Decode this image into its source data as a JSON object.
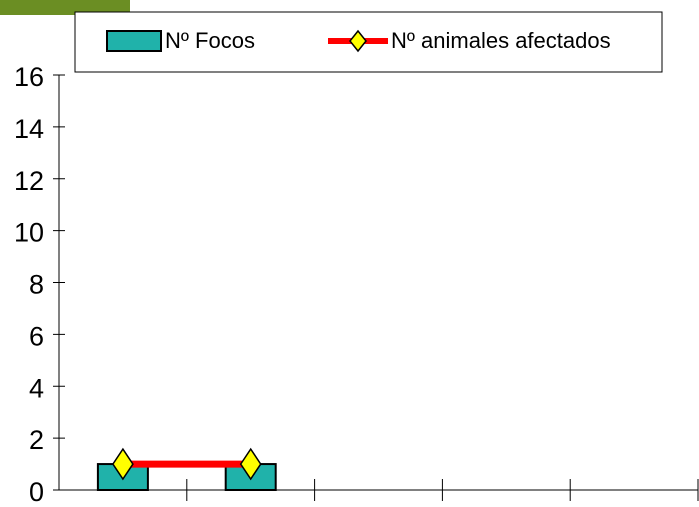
{
  "colors": {
    "corner_tab": "#6b8e23",
    "bar_fill": "#20b2aa",
    "bar_stroke": "#000000",
    "line": "#ff0000",
    "marker_fill": "#ffff00",
    "marker_stroke": "#000000",
    "axis": "#000000"
  },
  "chart_data": {
    "type": "bar",
    "title": "",
    "xlabel": "",
    "ylabel": "",
    "ylim": [
      0,
      16
    ],
    "y_ticks": [
      "0",
      "2",
      "4",
      "6",
      "8",
      "10",
      "12",
      "14",
      "16"
    ],
    "categories": [
      "",
      "",
      "",
      "",
      ""
    ],
    "series": [
      {
        "name": "Nº Focos",
        "type": "bar",
        "values": [
          1,
          1,
          null,
          null,
          null
        ]
      },
      {
        "name": "Nº animales afectados",
        "type": "line",
        "values": [
          1,
          1,
          null,
          null,
          null
        ]
      }
    ],
    "legend": {
      "position": "top",
      "items": [
        "Nº Focos",
        "Nº animales afectados"
      ]
    },
    "grid": false
  }
}
